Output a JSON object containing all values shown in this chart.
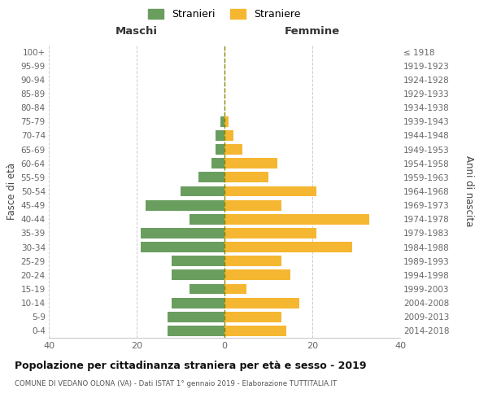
{
  "age_groups": [
    "0-4",
    "5-9",
    "10-14",
    "15-19",
    "20-24",
    "25-29",
    "30-34",
    "35-39",
    "40-44",
    "45-49",
    "50-54",
    "55-59",
    "60-64",
    "65-69",
    "70-74",
    "75-79",
    "80-84",
    "85-89",
    "90-94",
    "95-99",
    "100+"
  ],
  "birth_years": [
    "2014-2018",
    "2009-2013",
    "2004-2008",
    "1999-2003",
    "1994-1998",
    "1989-1993",
    "1984-1988",
    "1979-1983",
    "1974-1978",
    "1969-1973",
    "1964-1968",
    "1959-1963",
    "1954-1958",
    "1949-1953",
    "1944-1948",
    "1939-1943",
    "1934-1938",
    "1929-1933",
    "1924-1928",
    "1919-1923",
    "≤ 1918"
  ],
  "males": [
    13,
    13,
    12,
    8,
    12,
    12,
    19,
    19,
    8,
    18,
    10,
    6,
    3,
    2,
    2,
    1,
    0,
    0,
    0,
    0,
    0
  ],
  "females": [
    14,
    13,
    17,
    5,
    15,
    13,
    29,
    21,
    33,
    13,
    21,
    10,
    12,
    4,
    2,
    1,
    0,
    0,
    0,
    0,
    0
  ],
  "male_color": "#6a9e5f",
  "female_color": "#f5b731",
  "center_line_color": "#888800",
  "grid_color": "#cccccc",
  "bg_color": "#ffffff",
  "title": "Popolazione per cittadinanza straniera per età e sesso - 2019",
  "subtitle": "COMUNE DI VEDANO OLONA (VA) - Dati ISTAT 1° gennaio 2019 - Elaborazione TUTTITALIA.IT",
  "xlabel_left": "Maschi",
  "xlabel_right": "Femmine",
  "ylabel_left": "Fasce di età",
  "ylabel_right": "Anni di nascita",
  "legend_male": "Stranieri",
  "legend_female": "Straniere",
  "xlim": 40
}
